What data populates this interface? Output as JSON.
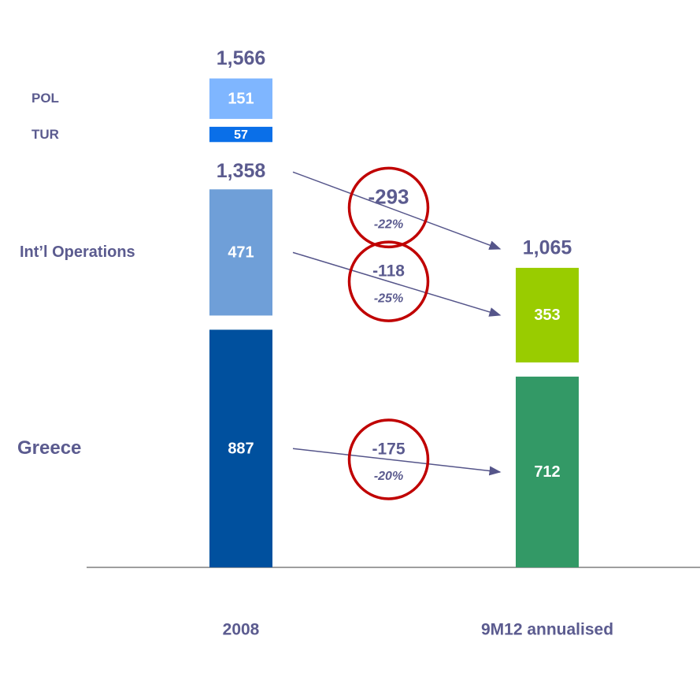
{
  "chart_data": {
    "type": "bar",
    "stacked": true,
    "categories": [
      "2008",
      "9M12 annualised"
    ],
    "series": [
      {
        "name": "Greece",
        "colors": [
          "#00509e",
          "#339966"
        ],
        "values": [
          887,
          712
        ]
      },
      {
        "name": "Int’l Operations",
        "colors": [
          "#6f9fd8",
          "#99cc00"
        ],
        "values": [
          471,
          353
        ]
      },
      {
        "name": "TUR",
        "colors": [
          "#0a6fe8",
          null
        ],
        "values": [
          57,
          null
        ]
      },
      {
        "name": "POL",
        "colors": [
          "#7fb6ff",
          null
        ],
        "values": [
          151,
          null
        ]
      }
    ],
    "totals": [
      1566,
      1065
    ],
    "total_labels": [
      "1,566",
      "1,065"
    ],
    "subtotal": 1358,
    "subtotal_label": "1,358",
    "changes": [
      -293,
      -118,
      -175
    ],
    "change_percents": [
      -22,
      -25,
      -20
    ],
    "change_percent_labels": [
      "-22%",
      "-25%",
      "-20%"
    ]
  }
}
